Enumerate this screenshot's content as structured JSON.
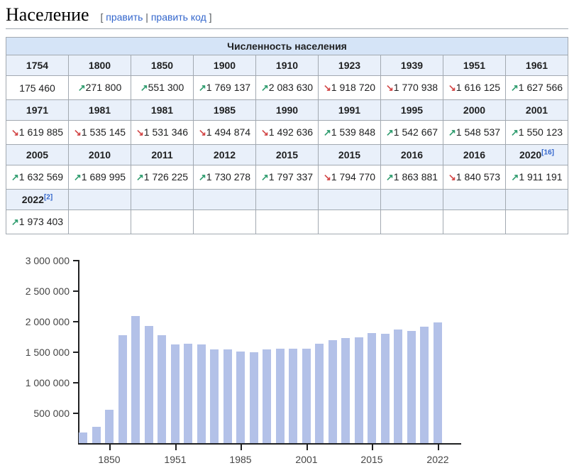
{
  "page": {
    "title": "Население",
    "edit_section": {
      "bracket_open": "[",
      "link1": "править",
      "separator": "|",
      "link2": "править код",
      "bracket_close": "]"
    }
  },
  "table": {
    "caption": "Численность населения",
    "columns": 9,
    "trend_up_glyph": "↗",
    "trend_down_glyph": "↘",
    "row_groups": [
      {
        "years": [
          "1754",
          "1800",
          "1850",
          "1900",
          "1910",
          "1923",
          "1939",
          "1951",
          "1961"
        ],
        "values": [
          {
            "trend": "none",
            "text": "175 460"
          },
          {
            "trend": "up",
            "text": "271 800"
          },
          {
            "trend": "up",
            "text": "551 300"
          },
          {
            "trend": "up",
            "text": "1 769 137"
          },
          {
            "trend": "up",
            "text": "2 083 630"
          },
          {
            "trend": "down",
            "text": "1 918 720"
          },
          {
            "trend": "down",
            "text": "1 770 938"
          },
          {
            "trend": "down",
            "text": "1 616 125"
          },
          {
            "trend": "up",
            "text": "1 627 566"
          }
        ]
      },
      {
        "years": [
          "1971",
          "1981",
          "1981",
          "1985",
          "1990",
          "1991",
          "1995",
          "2000",
          "2001"
        ],
        "values": [
          {
            "trend": "down",
            "text": "1 619 885"
          },
          {
            "trend": "down",
            "text": "1 535 145"
          },
          {
            "trend": "down",
            "text": "1 531 346"
          },
          {
            "trend": "down",
            "text": "1 494 874"
          },
          {
            "trend": "down",
            "text": "1 492 636"
          },
          {
            "trend": "up",
            "text": "1 539 848"
          },
          {
            "trend": "up",
            "text": "1 542 667"
          },
          {
            "trend": "up",
            "text": "1 548 537"
          },
          {
            "trend": "up",
            "text": "1 550 123"
          }
        ]
      },
      {
        "years": [
          "2005",
          "2010",
          "2011",
          "2012",
          "2015",
          "2015",
          "2016",
          "2016",
          {
            "label": "2020",
            "ref": "16"
          }
        ],
        "values": [
          {
            "trend": "up",
            "text": "1 632 569"
          },
          {
            "trend": "up",
            "text": "1 689 995"
          },
          {
            "trend": "up",
            "text": "1 726 225"
          },
          {
            "trend": "up",
            "text": "1 730 278"
          },
          {
            "trend": "up",
            "text": "1 797 337"
          },
          {
            "trend": "down",
            "text": "1 794 770"
          },
          {
            "trend": "up",
            "text": "1 863 881"
          },
          {
            "trend": "down",
            "text": "1 840 573"
          },
          {
            "trend": "up",
            "text": "1 911 191"
          }
        ]
      },
      {
        "years": [
          {
            "label": "2022",
            "ref": "2"
          },
          "",
          "",
          "",
          "",
          "",
          "",
          "",
          ""
        ],
        "values": [
          {
            "trend": "up",
            "text": "1 973 403"
          },
          null,
          null,
          null,
          null,
          null,
          null,
          null,
          null
        ]
      }
    ]
  },
  "chart_data": {
    "type": "bar",
    "title": "",
    "xlabel": "",
    "ylabel": "",
    "grid": false,
    "legend": null,
    "x": [
      1754,
      1800,
      1850,
      1900,
      1910,
      1923,
      1939,
      1951,
      1961,
      1971,
      1981,
      1981,
      1985,
      1990,
      1991,
      1995,
      2000,
      2001,
      2005,
      2010,
      2011,
      2012,
      2015,
      2015,
      2016,
      2016,
      2020,
      2022
    ],
    "values": [
      175460,
      271800,
      551300,
      1769137,
      2083630,
      1918720,
      1770938,
      1616125,
      1627566,
      1619885,
      1535145,
      1531346,
      1494874,
      1492636,
      1539848,
      1542667,
      1548537,
      1550123,
      1632569,
      1689995,
      1726225,
      1730278,
      1797337,
      1794770,
      1863881,
      1840573,
      1911191,
      1973403
    ],
    "ylim": [
      0,
      3000000
    ],
    "yticks": [
      500000,
      1000000,
      1500000,
      2000000,
      2500000,
      3000000
    ],
    "ytick_labels": [
      "500 000",
      "1 000 000",
      "1 500 000",
      "2 000 000",
      "2 500 000",
      "3 000 000"
    ],
    "xticks": [
      {
        "index": 2,
        "label": "1850"
      },
      {
        "index": 7,
        "label": "1951"
      },
      {
        "index": 12,
        "label": "1985"
      },
      {
        "index": 17,
        "label": "2001"
      },
      {
        "index": 22,
        "label": "2015"
      },
      {
        "index": 27,
        "label": "2022"
      }
    ],
    "bar_color": "#b3c1e8"
  },
  "colors": {
    "link": "#3366cc",
    "edit_bracket": "#54595d",
    "table_border": "#a2a9b1",
    "caption_bg": "#d5e4f7",
    "year_row_bg": "#e9f0fa",
    "trend_up": "#2e9c6e",
    "trend_down": "#d24444",
    "bar": "#b3c1e8",
    "axis": "#202122"
  }
}
